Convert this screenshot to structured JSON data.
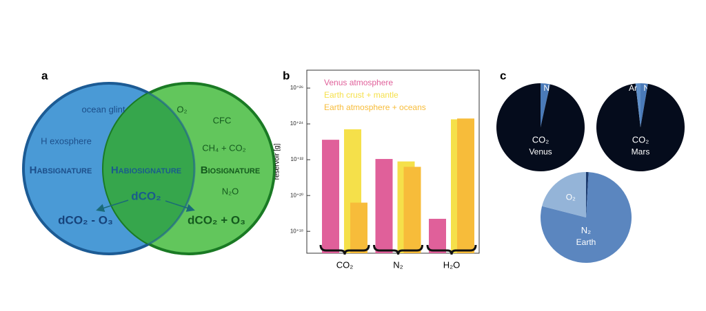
{
  "panel_labels": [
    "a",
    "b",
    "c"
  ],
  "venn": {
    "ocean_glint": "ocean glint",
    "h_exosphere": "H exosphere",
    "habsignature": "Habsignature",
    "habiosignature": "Habiosignature",
    "biosignature": "Biosignature",
    "o2": "O₂",
    "cfc": "CFC",
    "ch4_co2": "CH₄ + CO₂",
    "n2o": "N₂O",
    "dco2": "dCO₂",
    "dco2_minus_o3": "dCO₂ - O₃",
    "dco2_plus_o3": "dCO₂ + O₃"
  },
  "chart_data": [
    {
      "type": "bar",
      "y_label": "reservoir [g]",
      "log_scale": true,
      "categories": [
        "CO₂",
        "N₂",
        "H₂O"
      ],
      "series": [
        {
          "name": "Venus atmosphere",
          "color": "#e0609a",
          "values": [
            1.3e+23,
            1.1e+22,
            5e+18
          ]
        },
        {
          "name": "Earth crust + mantle",
          "color": "#f5e04a",
          "values": [
            5e+23,
            8e+21,
            1.8e+24
          ]
        },
        {
          "name": "Earth atmosphere + oceans",
          "color": "#f7bc3a",
          "values": [
            4e+19,
            4e+21,
            2e+24
          ]
        }
      ],
      "ylim": [
        6e+16,
        1e+27
      ],
      "yticks": [
        {
          "value": 1e+18,
          "label": "10⁺¹⁸"
        },
        {
          "value": 1e+20,
          "label": "10⁺²⁰"
        },
        {
          "value": 1e+22,
          "label": "10⁺²²"
        },
        {
          "value": 1e+24,
          "label": "10⁺²⁴"
        },
        {
          "value": 1e+26,
          "label": "10⁺²⁶"
        }
      ]
    },
    {
      "type": "pie",
      "name": "Venus",
      "categories": [
        "N₂",
        "CO₂"
      ],
      "values": [
        3.5,
        96.5
      ],
      "colors": [
        "#4a7ab8",
        "#050c1c"
      ]
    },
    {
      "type": "pie",
      "name": "Mars",
      "categories": [
        "N₂",
        "CO₂",
        "Ar"
      ],
      "values": [
        2.7,
        95.5,
        1.8
      ],
      "colors": [
        "#4a7ab8",
        "#050c1c",
        "#5f8fc8"
      ]
    },
    {
      "type": "pie",
      "name": "Earth",
      "categories": [
        "Ar",
        "N₂",
        "O₂"
      ],
      "values": [
        0.9,
        78.1,
        21
      ],
      "colors": [
        "#1c3b6e",
        "#5b86bf",
        "#94b4d8"
      ]
    }
  ]
}
